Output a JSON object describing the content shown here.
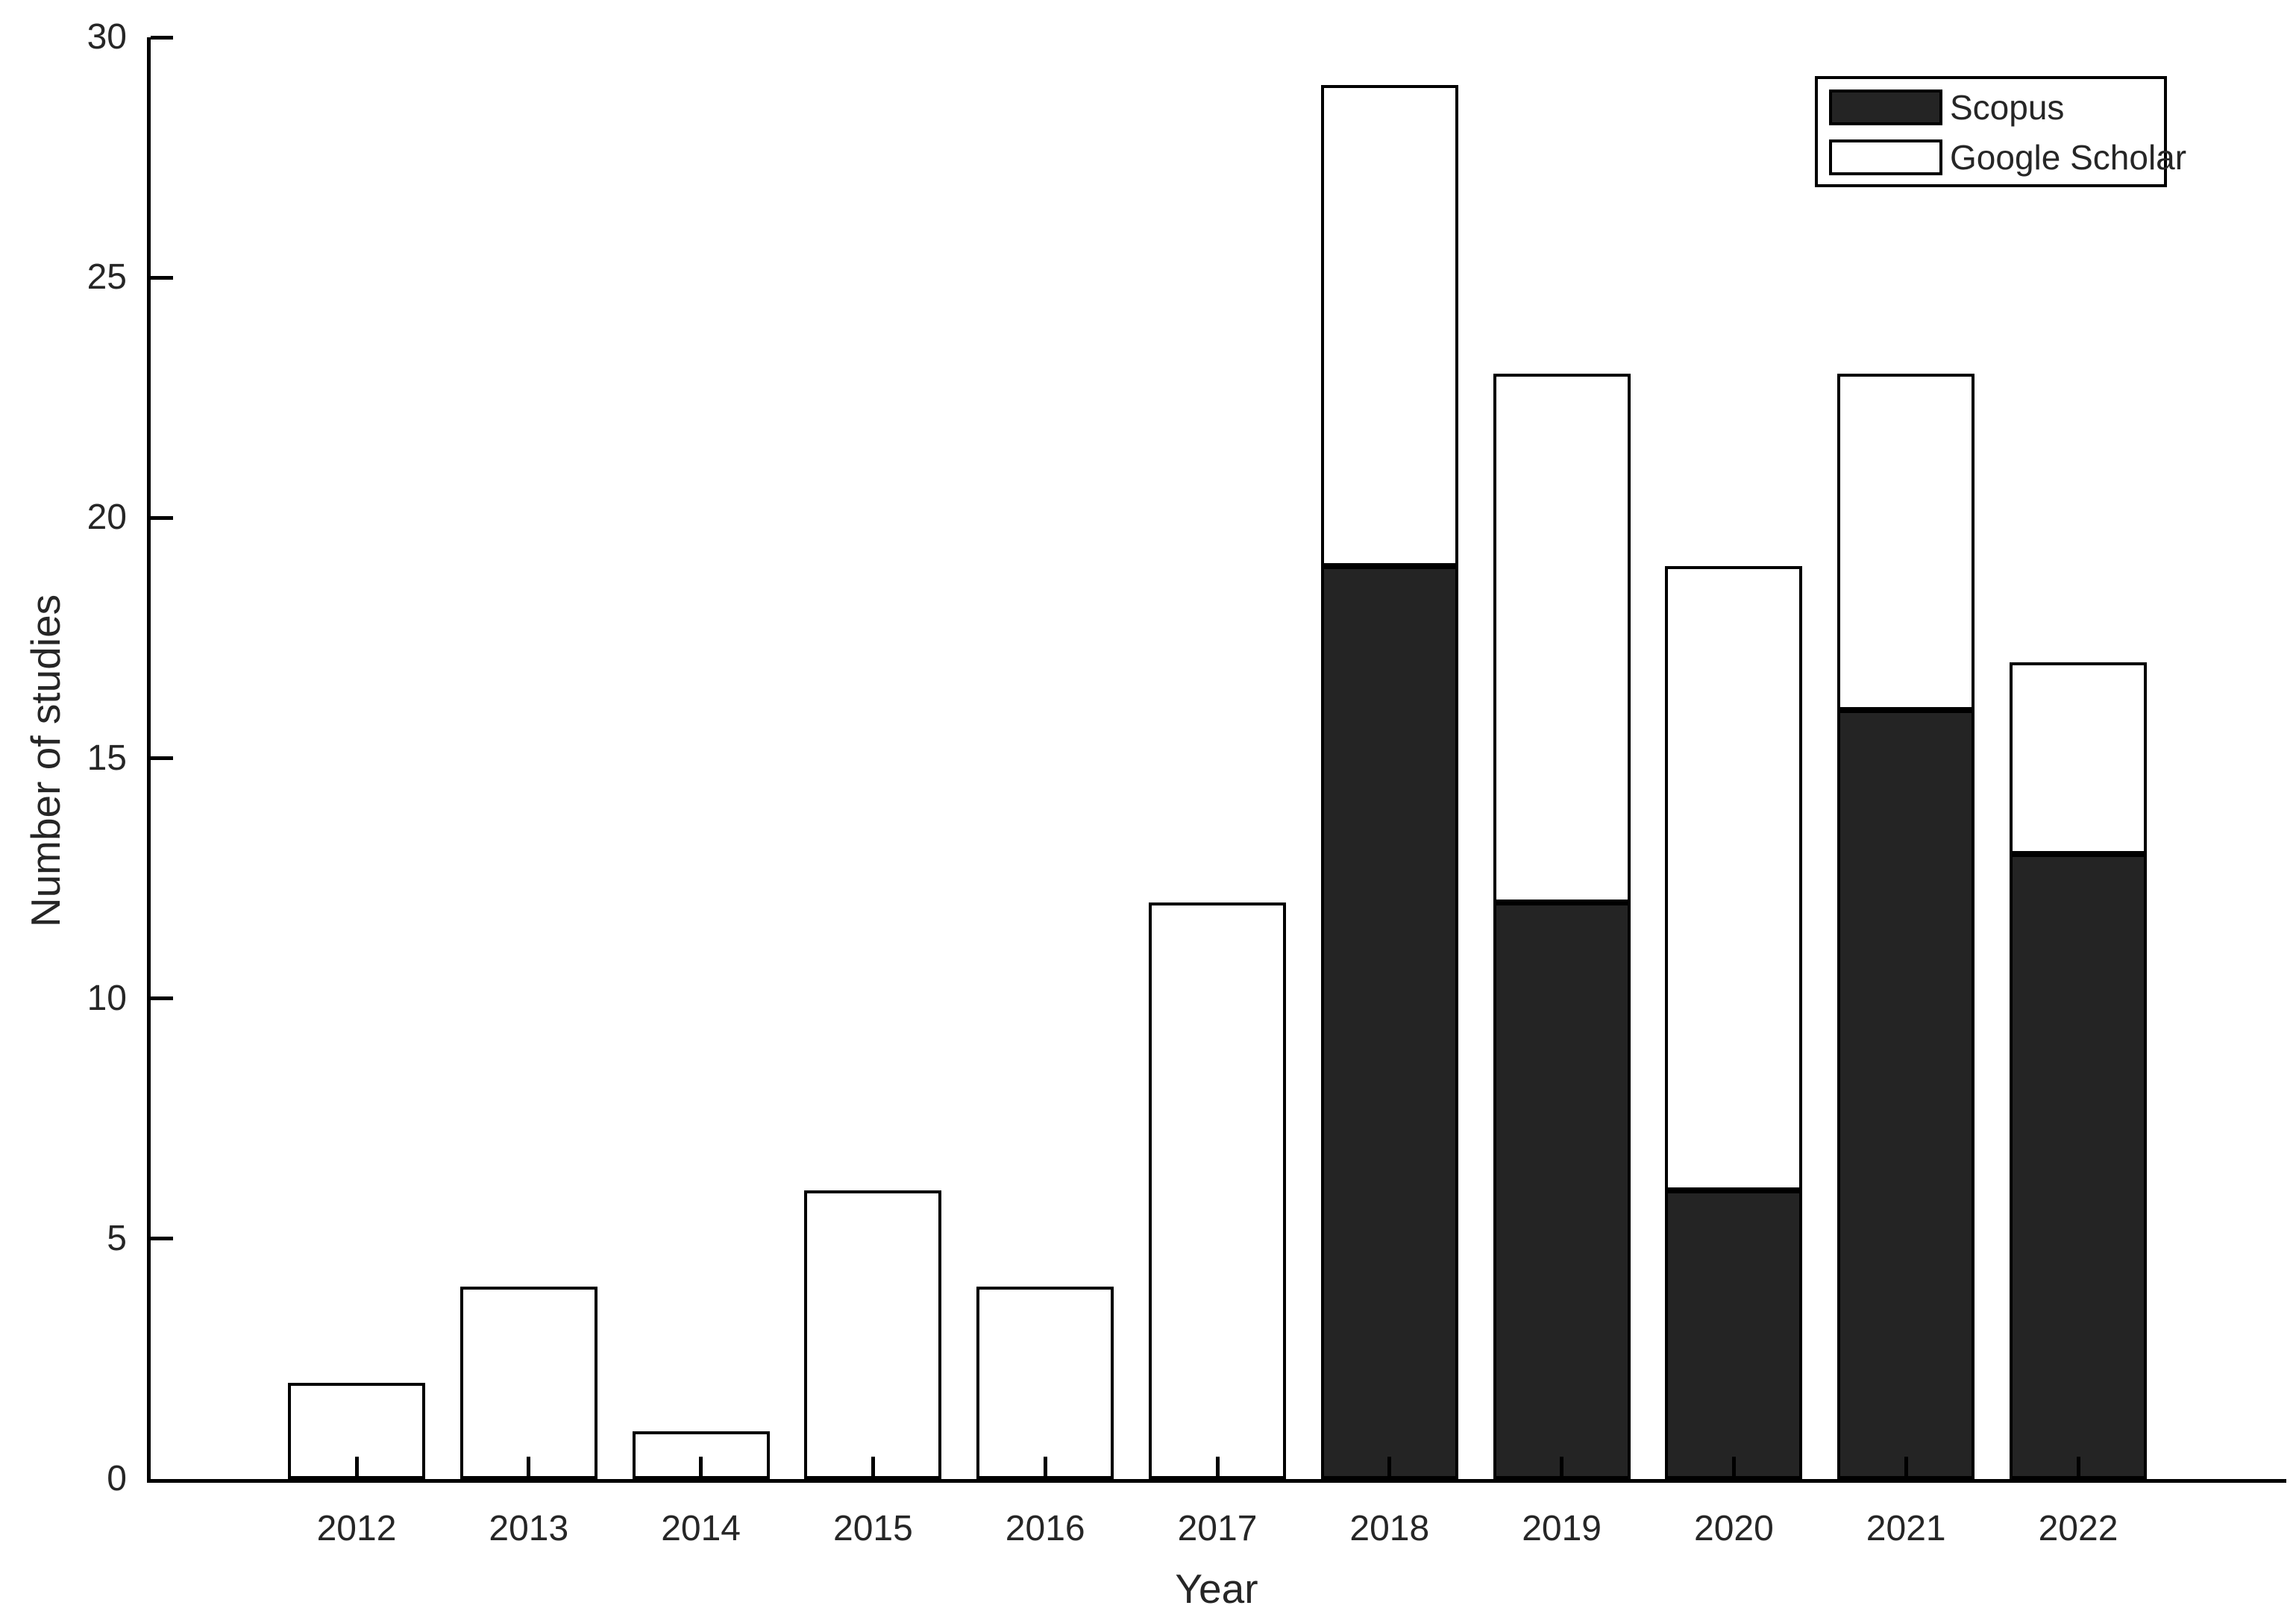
{
  "figure": {
    "background": "#ffffff",
    "axis_color": "#000000",
    "text_color": "#262626"
  },
  "chart_data": {
    "type": "bar",
    "stacked": true,
    "title": "",
    "xlabel": "Year",
    "ylabel": "Number of studies",
    "categories": [
      "2012",
      "2013",
      "2014",
      "2015",
      "2016",
      "2017",
      "2018",
      "2019",
      "2020",
      "2021",
      "2022"
    ],
    "series": [
      {
        "name": "Scopus",
        "color": "#242424",
        "outline": "#000000",
        "values": [
          0,
          0,
          0,
          0,
          0,
          0,
          19,
          12,
          6,
          16,
          13
        ]
      },
      {
        "name": "Google Scholar",
        "color": "#ffffff",
        "outline": "#000000",
        "values": [
          2,
          4,
          1,
          6,
          4,
          12,
          10,
          11,
          13,
          7,
          4
        ]
      }
    ],
    "totals": [
      2,
      4,
      1,
      6,
      4,
      12,
      29,
      23,
      19,
      23,
      17
    ],
    "ylim": [
      0,
      30
    ],
    "yticks": [
      0,
      5,
      10,
      15,
      20,
      25,
      30
    ],
    "grid": false,
    "legend_position": "top-right",
    "tick_direction": "in"
  }
}
